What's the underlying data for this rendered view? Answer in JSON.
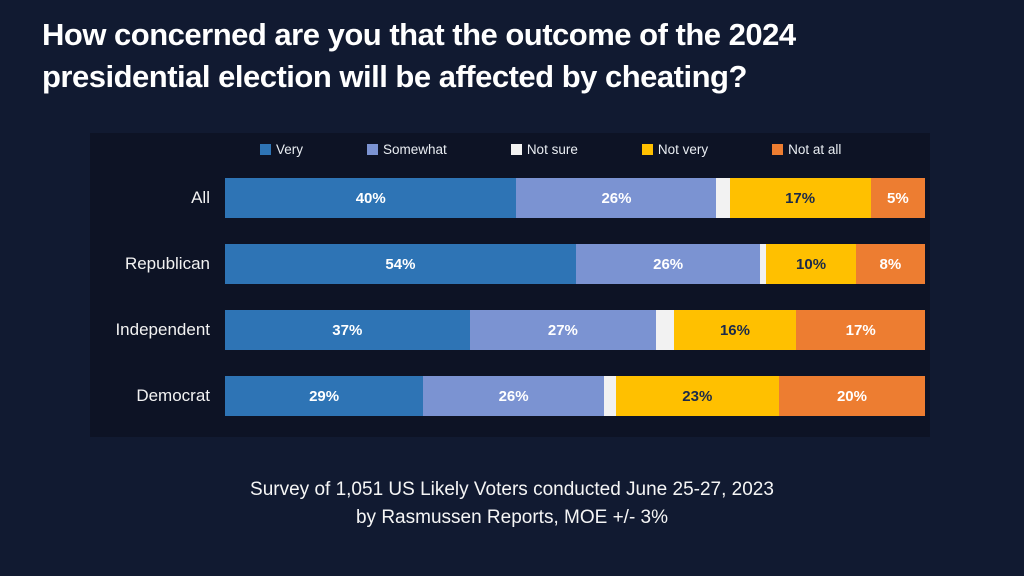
{
  "page": {
    "background_color": "#111A31",
    "panel_background_color": "#0D1325"
  },
  "title": {
    "lines": [
      "How concerned are you that the outcome of the 2024",
      "presidential election will be affected by cheating?"
    ]
  },
  "footer": {
    "lines": [
      "Survey of 1,051 US Likely Voters conducted June 25-27, 2023",
      "by Rasmussen Reports, MOE +/- 3%"
    ]
  },
  "chart_data": {
    "type": "bar",
    "orientation": "horizontal",
    "stacked": true,
    "normalized_to_full_width": true,
    "title": "How concerned are you that the outcome of the 2024 presidential election will be affected by cheating?",
    "legend_position": "top",
    "grid": false,
    "categories": [
      "All",
      "Republican",
      "Independent",
      "Democrat"
    ],
    "legend": [
      {
        "label": "Very",
        "color": "#2E74B5",
        "label_color": "#FFFFFF"
      },
      {
        "label": "Somewhat",
        "color": "#7B93D2",
        "label_color": "#FFFFFF"
      },
      {
        "label": "Not sure",
        "color": "#F2F2F2",
        "label_color": "#1B2A4A"
      },
      {
        "label": "Not very",
        "color": "#FFC000",
        "label_color": "#1B2A4A"
      },
      {
        "label": "Not at all",
        "color": "#ED7D31",
        "label_color": "#FFFFFF"
      }
    ],
    "series": [
      {
        "name": "Very",
        "values": [
          40,
          54,
          37,
          29
        ],
        "labels_hidden": false
      },
      {
        "name": "Somewhat",
        "values": [
          26,
          26,
          27,
          26
        ],
        "labels_hidden": false
      },
      {
        "name": "Not sure",
        "values": [
          2,
          1,
          3,
          2
        ],
        "labels_hidden": true,
        "note": "segments drawn but unlabeled in source image; values estimated from segment widths"
      },
      {
        "name": "Not very",
        "values": [
          17,
          10,
          16,
          23
        ],
        "labels_hidden": false
      },
      {
        "name": "Not at all",
        "values": [
          5,
          8,
          17,
          20
        ],
        "labels_hidden": false
      }
    ],
    "value_suffix": "%"
  }
}
